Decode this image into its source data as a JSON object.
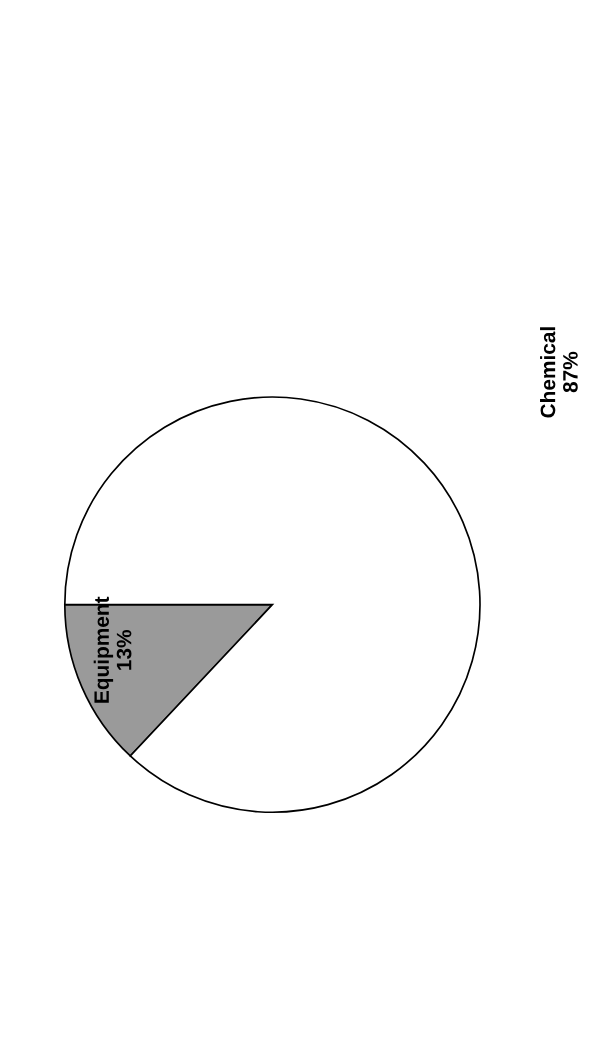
{
  "chart_data": {
    "type": "pie",
    "categories": [
      "Equipment",
      "Chemical"
    ],
    "values": [
      13,
      87
    ],
    "value_labels": [
      "13%",
      "87%"
    ],
    "colors": [
      "#9a9a9a",
      "#ffffff"
    ]
  }
}
